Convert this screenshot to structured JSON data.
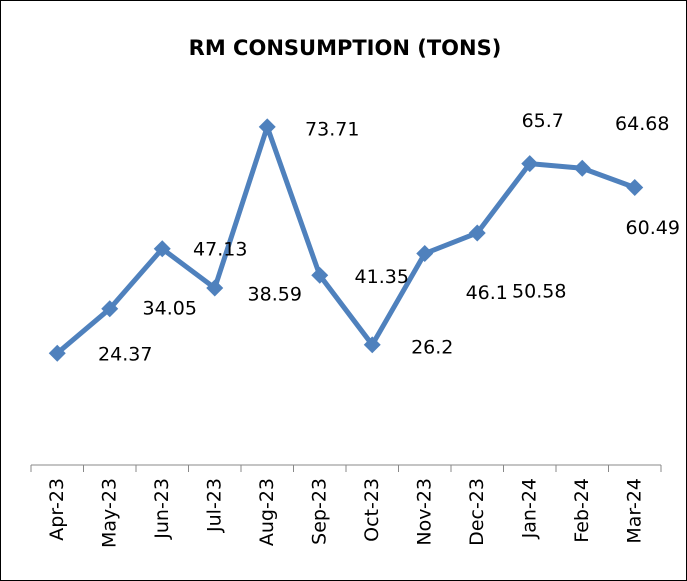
{
  "chart_data": {
    "type": "line",
    "title": "RM CONSUMPTION (TONS)",
    "categories": [
      "Apr-23",
      "May-23",
      "Jun-23",
      "Jul-23",
      "Aug-23",
      "Sep-23",
      "Oct-23",
      "Nov-23",
      "Dec-23",
      "Jan-24",
      "Feb-24",
      "Mar-24"
    ],
    "series": [
      {
        "name": "RM Consumption",
        "color": "#4f81bd",
        "values": [
          24.37,
          34.05,
          47.13,
          38.59,
          73.71,
          41.35,
          26.2,
          46.1,
          50.58,
          65.7,
          64.68,
          60.49
        ]
      }
    ],
    "ylim": [
      0,
      80
    ]
  }
}
